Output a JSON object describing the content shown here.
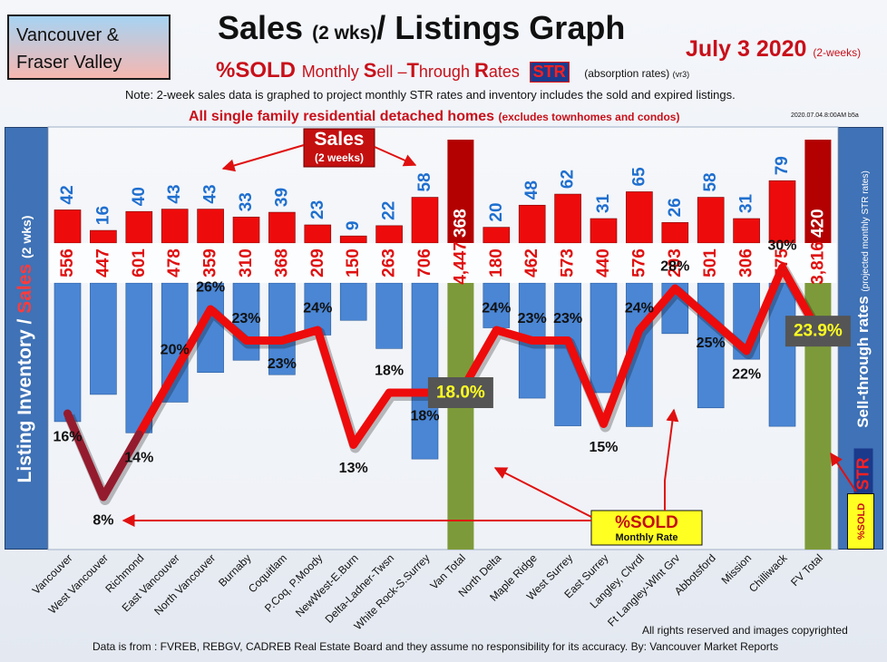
{
  "header": {
    "region": "Vancouver & Fraser Valley",
    "title_main": "Sales",
    "title_small": "(2 wks)",
    "title_rest": "/ Listings Graph",
    "date": "July 3  2020",
    "date_small": "(2-weeks)",
    "sold_label": "%SOLD",
    "subtitle_rest_1": "Monthly",
    "subtitle_s": "S",
    "subtitle_ell": "ell",
    "subtitle_dash": " –",
    "subtitle_t": "T",
    "subtitle_hrough": "hrough",
    "subtitle_r": "R",
    "subtitle_ates": "ates",
    "str_badge": "STR",
    "absorption": "(absorption rates)",
    "absorption_ver": "(vr3)",
    "note": "Note: 2-week sales data is graphed to project monthly STR rates and inventory includes the sold and expired listings.",
    "subhead": "All single family residential detached homes",
    "subhead_small": "(excludes townhomes and condos)",
    "stamp": "2020.07.04.8:00AM b5a"
  },
  "side_labels": {
    "left_main": "Listing Inventory /",
    "left_sales": "Sales",
    "left_small": "(2  wks)",
    "right_main": "Sell-through rates",
    "right_small": "(projected monthly STR rates)",
    "right_str": "STR",
    "right_sold": "%SOLD"
  },
  "annotations": {
    "sales_callout_title": "Sales",
    "sales_callout_sub": "(2 weeks)",
    "sold_callout_title": "%SOLD",
    "sold_callout_sub": "Monthly Rate"
  },
  "footer": {
    "rights": "All rights reserved and  images copyrighted",
    "source": "Data is from : FVREB, REBGV, CADREB Real Estate Board and they assume no responsibility for its accuracy. By: Vancouver Market Reports"
  },
  "colors": {
    "sales_bar": "#ee0b0b",
    "inventory_bar": "#4a86d4",
    "total_sales_bar": "#b30000",
    "total_inventory_bar": "#7d9a3a",
    "str_line": "#ee0b0b",
    "label_blue": "#1f6fcf",
    "label_red": "#e01010"
  },
  "chart_data": {
    "type": "bar",
    "categories": [
      "Vancouver",
      "West Vancouver",
      "Richmond",
      "East Vancouver",
      "North Vancouver",
      "Burnaby",
      "Coquitlam",
      "P.Coq, P.Moody",
      "NewWest-E.Burn",
      "Delta-Ladner-Twsn",
      "White Rock-S.Surrey",
      "Van Total",
      "North Delta",
      "Maple Ridge",
      "West Surrey",
      "East Surrey",
      "Langley, Clvrdl",
      "Ft Langley-Wlnt Grv",
      "Abbotsford",
      "Mission",
      "Chilliwack",
      "FV Total"
    ],
    "series": [
      {
        "name": "Sales",
        "values": [
          42,
          16,
          40,
          43,
          43,
          33,
          39,
          23,
          9,
          22,
          58,
          368,
          20,
          48,
          62,
          31,
          65,
          26,
          58,
          31,
          79,
          420
        ]
      },
      {
        "name": "Listing Inventory",
        "values": [
          556,
          447,
          601,
          478,
          359,
          310,
          368,
          209,
          150,
          263,
          706,
          4447,
          180,
          462,
          573,
          440,
          576,
          203,
          501,
          306,
          575,
          3816
        ]
      },
      {
        "name": "%SOLD",
        "values": [
          16,
          8,
          14,
          20,
          26,
          23,
          23,
          24,
          13,
          18,
          18,
          18.0,
          24,
          23,
          23,
          15,
          24,
          28,
          25,
          22,
          30,
          23.9
        ]
      }
    ],
    "total_indices": [
      11,
      21
    ],
    "value_labels": {
      "sales": [
        "42",
        "16",
        "40",
        "43",
        "43",
        "33",
        "39",
        "23",
        "9",
        "22",
        "58",
        "368",
        "20",
        "48",
        "62",
        "31",
        "65",
        "26",
        "58",
        "31",
        "79",
        "420"
      ],
      "inventory": [
        "556",
        "447",
        "601",
        "478",
        "359",
        "310",
        "368",
        "209",
        "150",
        "263",
        "706",
        "4,447",
        "180",
        "462",
        "573",
        "440",
        "576",
        "203",
        "501",
        "306",
        "575",
        "3,816"
      ],
      "sold": [
        "16%",
        "8%",
        "14%",
        "20%",
        "26%",
        "23%",
        "23%",
        "24%",
        "13%",
        "18%",
        "18%",
        "18.0%",
        "24%",
        "23%",
        "23%",
        "15%",
        "24%",
        "28%",
        "25%",
        "22%",
        "30%",
        "23.9%"
      ]
    }
  }
}
